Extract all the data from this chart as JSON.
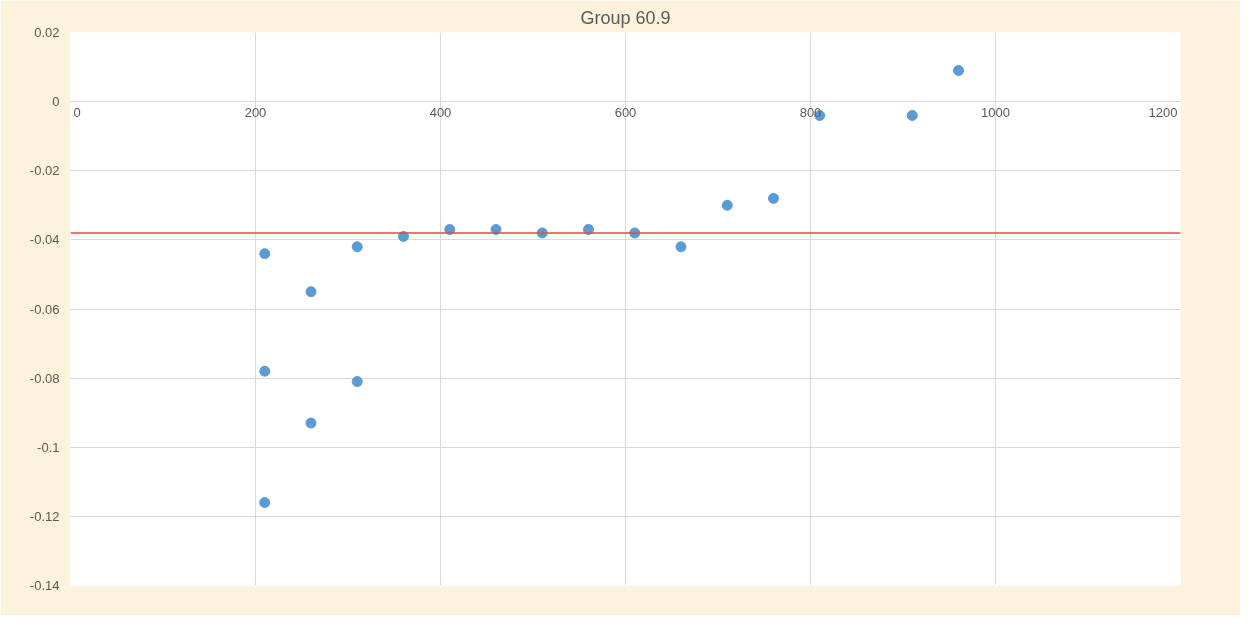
{
  "chart_data": {
    "type": "scatter",
    "title": "Group 60.9",
    "x": [
      210,
      210,
      210,
      260,
      260,
      310,
      310,
      360,
      410,
      460,
      510,
      560,
      610,
      660,
      710,
      760,
      810,
      910,
      960
    ],
    "series": [
      {
        "color": "#5b9bd5",
        "values": [
          -0.044,
          -0.078,
          -0.116,
          -0.055,
          -0.093,
          -0.042,
          -0.081,
          -0.039,
          -0.037,
          -0.037,
          -0.038,
          -0.037,
          -0.038,
          -0.042,
          -0.03,
          -0.028,
          -0.004,
          -0.004,
          0.009
        ]
      }
    ],
    "xlim": [
      0,
      1200
    ],
    "xticks": [
      0,
      200,
      400,
      600,
      800,
      1000,
      1200
    ],
    "ylim": [
      -0.14,
      0.02
    ],
    "yticks": [
      -0.14,
      -0.12,
      -0.1,
      -0.08,
      -0.06,
      -0.04,
      -0.02,
      0,
      0.02
    ],
    "ref_lines": [
      {
        "axis": "y",
        "value": -0.038,
        "label": null,
        "color": "#e8493f"
      }
    ],
    "grid": true,
    "marker": "circle"
  }
}
